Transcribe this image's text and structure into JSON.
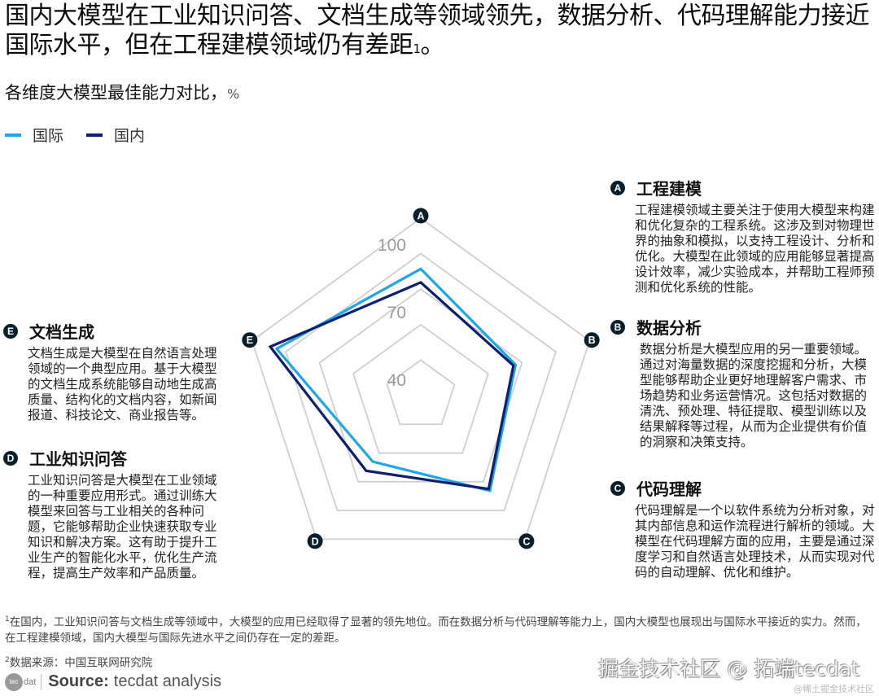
{
  "header": {
    "title": "国内大模型在工业知识问答、文档生成等领域领先，数据分析、代码理解能力接近国际水平，但在工程建模领域仍有差距",
    "title_footnote": "1",
    "title_end": "。",
    "subtitle": "各维度大模型最佳能力对比，",
    "subtitle_unit": "%"
  },
  "legend": [
    {
      "label": "国际",
      "color": "#1ea7e4"
    },
    {
      "label": "国内",
      "color": "#0d1f6e"
    }
  ],
  "chart_data": {
    "type": "radar",
    "title": "各维度大模型最佳能力对比，%",
    "axes": [
      "A 工程建模",
      "B 数据分析",
      "C 代码理解",
      "D 工业知识问答",
      "E 文档生成"
    ],
    "axis_keys": [
      "A",
      "B",
      "C",
      "D",
      "E"
    ],
    "tick_labels": [
      "40",
      "70",
      "100"
    ],
    "grid": true,
    "grid_rings": 5,
    "scale": {
      "min": 32.8,
      "max": 111.5
    },
    "legend_position": "top-left",
    "series": [
      {
        "name": "国际",
        "color": "#1ea7e4",
        "values": [
          89,
          77,
          85,
          69,
          100
        ]
      },
      {
        "name": "国内",
        "color": "#0d1f6e",
        "values": [
          83,
          76,
          84,
          74,
          103
        ]
      }
    ]
  },
  "dimensions": {
    "A": {
      "badge": "A",
      "title": "工程建模",
      "body": "工程建模领域主要关注于使用大模型来构建和优化复杂的工程系统。这涉及到对物理世界的抽象和模拟，以支持工程设计、分析和优化。大模型在此领域的应用能够显著提高设计效率，减少实验成本，并帮助工程师预测和优化系统的性能。"
    },
    "B": {
      "badge": "B",
      "title": "数据分析",
      "body": "数据分析是大模型应用的另一重要领域。通过对海量数据的深度挖掘和分析，大模型能够帮助企业更好地理解客户需求、市场趋势和业务运营情况。这包括对数据的清洗、预处理、特征提取、模型训练以及结果解释等过程，从而为企业提供有价值的洞察和决策支持。"
    },
    "C": {
      "badge": "C",
      "title": "代码理解",
      "body": "代码理解是一个以软件系统为分析对象，对其内部信息和运作流程进行解析的领域。大模型在代码理解方面的应用，主要是通过深度学习和自然语言处理技术，从而实现对代码的自动理解、优化和维护。"
    },
    "D": {
      "badge": "D",
      "title": "工业知识问答",
      "body": "工业知识问答是大模型在工业领域的一种重要应用形式。通过训练大模型来回答与工业相关的各种问题，它能够帮助企业快速获取专业知识和解决方案。这有助于提升工业生产的智能化水平，优化生产流程，提高生产效率和产品质量。"
    },
    "E": {
      "badge": "E",
      "title": "文档生成",
      "body": "文档生成是大模型在自然语言处理领域的一个典型应用。基于大模型的文档生成系统能够自动地生成高质量、结构化的文档内容，如新闻报道、科技论文、商业报告等。"
    }
  },
  "footnotes": {
    "note1_mark": "1",
    "note1": "在国内，工业知识问答与文档生成等领域中，大模型的应用已经取得了显著的领先地位。而在数据分析与代码理解等能力上，国内大模型也展现出与国际水平接近的实力。然而，在工程建模领域，国内大模型与国际先进水平之间仍存在一定的差距。",
    "note2_mark": "2",
    "note2": "数据来源：中国互联网研究院"
  },
  "source": {
    "logo_text": "tec",
    "logo_suffix": "dat",
    "label": "Source:",
    "text": "tecdat analysis"
  },
  "watermark": {
    "main": "掘金技术社区 @ 拓端tecdat",
    "small": "@稀土掘金技术社区"
  }
}
